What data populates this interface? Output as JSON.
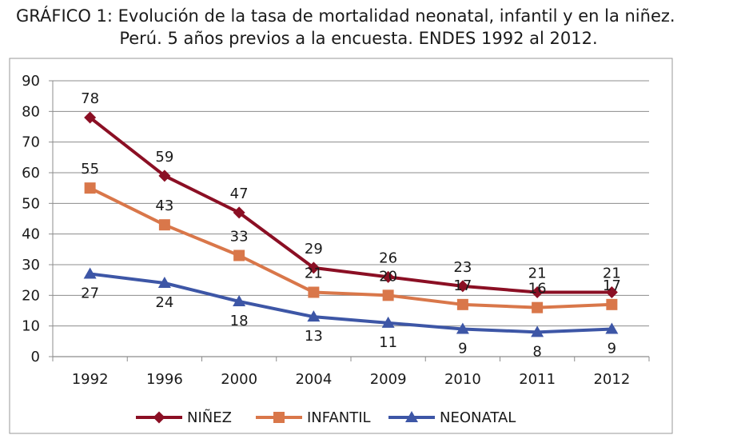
{
  "title": {
    "line1": "GRÁFICO 1: Evolución de la tasa de mortalidad neonatal, infantil y en la niñez.",
    "line2": "Perú. 5 años previos a la encuesta. ENDES 1992 al 2012."
  },
  "chart_data": {
    "type": "line",
    "title": "GRÁFICO 1: Evolución de la tasa de mortalidad neonatal, infantil y en la niñez. Perú. 5 años previos a la encuesta. ENDES 1992 al 2012.",
    "categories": [
      "1992",
      "1996",
      "2000",
      "2004",
      "2009",
      "2010",
      "2011",
      "2012"
    ],
    "ylim": [
      0,
      90
    ],
    "yticks": [
      0,
      10,
      20,
      30,
      40,
      50,
      60,
      70,
      80,
      90
    ],
    "grid": true,
    "legend_position": "bottom",
    "series": [
      {
        "name": "NIÑEZ",
        "values": [
          78,
          59,
          47,
          29,
          26,
          23,
          21,
          21
        ],
        "color": "#8b0f24",
        "marker": "diamond",
        "label_side": "above"
      },
      {
        "name": "INFANTIL",
        "values": [
          55,
          43,
          33,
          21,
          20,
          17,
          16,
          17
        ],
        "color": "#d9774a",
        "marker": "square",
        "label_side": "above"
      },
      {
        "name": "NEONATAL",
        "values": [
          27,
          24,
          18,
          13,
          11,
          9,
          8,
          9
        ],
        "color": "#3d56a6",
        "marker": "triangle",
        "label_side": "below"
      }
    ]
  }
}
